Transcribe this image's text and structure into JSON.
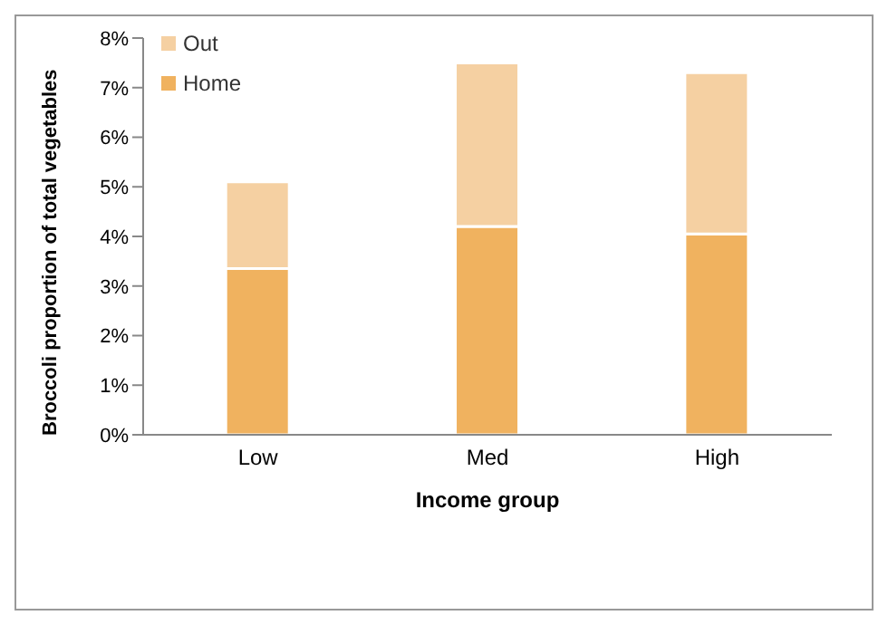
{
  "chart_data": {
    "type": "bar",
    "stacked": true,
    "xlabel": "Income group",
    "ylabel": "Broccoli proportion of total vegetables",
    "categories": [
      "Low",
      "Med",
      "High"
    ],
    "series": [
      {
        "name": "Home",
        "color": "#f0b25f",
        "values": [
          3.35,
          4.2,
          4.05
        ]
      },
      {
        "name": "Out",
        "color": "#f5d0a2",
        "values": [
          1.75,
          3.3,
          3.25
        ]
      }
    ],
    "ylim": [
      0,
      8
    ],
    "yticks": [
      {
        "value": 0,
        "label": "0%"
      },
      {
        "value": 1,
        "label": "1%"
      },
      {
        "value": 2,
        "label": "2%"
      },
      {
        "value": 3,
        "label": "3%"
      },
      {
        "value": 4,
        "label": "4%"
      },
      {
        "value": 5,
        "label": "5%"
      },
      {
        "value": 6,
        "label": "6%"
      },
      {
        "value": 7,
        "label": "7%"
      },
      {
        "value": 8,
        "label": "8%"
      }
    ],
    "grid": false,
    "legend": "top left"
  }
}
